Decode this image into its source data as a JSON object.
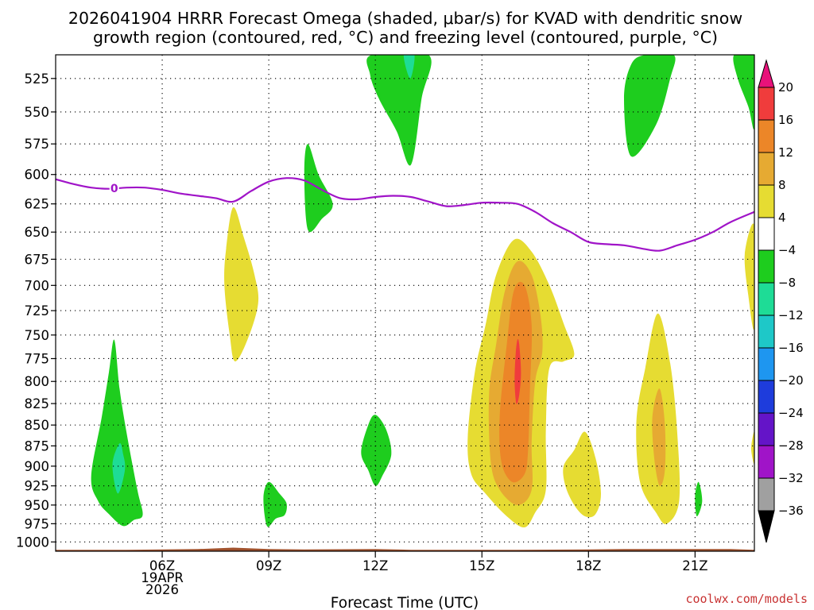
{
  "chart_data": {
    "type": "heatmap",
    "title_lines": [
      "2026041904 HRRR Forecast Omega (shaded, μbar/s) for KVAD with dendritic snow",
      "growth region (contoured, red, °C) and freezing level (contoured, purple, °C)"
    ],
    "xlabel": "Forecast Time (UTC)",
    "credit": "coolwx.com/models",
    "x_range_hours": [
      3.0,
      22.67
    ],
    "y_range_hPa": [
      508,
      1013
    ],
    "x_ticks": [
      {
        "hour": 6,
        "lines": [
          "06Z",
          "19APR",
          "2026"
        ]
      },
      {
        "hour": 9,
        "lines": [
          "09Z"
        ]
      },
      {
        "hour": 12,
        "lines": [
          "12Z"
        ]
      },
      {
        "hour": 15,
        "lines": [
          "15Z"
        ]
      },
      {
        "hour": 18,
        "lines": [
          "18Z"
        ]
      },
      {
        "hour": 21,
        "lines": [
          "21Z"
        ]
      }
    ],
    "y_ticks": [
      525,
      550,
      575,
      600,
      625,
      650,
      675,
      700,
      725,
      750,
      775,
      800,
      825,
      850,
      875,
      900,
      925,
      950,
      975,
      1000
    ],
    "grid": true,
    "colorbar": {
      "labels": [
        "20",
        "16",
        "12",
        "8",
        "4",
        "−4",
        "−8",
        "−12",
        "−16",
        "−20",
        "−24",
        "−28",
        "−32",
        "−36"
      ],
      "bins": [
        {
          "range": [
            20,
            24
          ],
          "color": "#e8127a"
        },
        {
          "range": [
            16,
            20
          ],
          "color": "#f03c3c"
        },
        {
          "range": [
            12,
            16
          ],
          "color": "#ec8628"
        },
        {
          "range": [
            8,
            12
          ],
          "color": "#e6aa32"
        },
        {
          "range": [
            4,
            8
          ],
          "color": "#e6dc32"
        },
        {
          "range": [
            -4,
            4
          ],
          "color": "#ffffff"
        },
        {
          "range": [
            -8,
            -4
          ],
          "color": "#1ecd1e"
        },
        {
          "range": [
            -12,
            -8
          ],
          "color": "#1edc96"
        },
        {
          "range": [
            -16,
            -12
          ],
          "color": "#1ec8c8"
        },
        {
          "range": [
            -20,
            -16
          ],
          "color": "#1e96f0"
        },
        {
          "range": [
            -24,
            -20
          ],
          "color": "#1e3cdc"
        },
        {
          "range": [
            -28,
            -24
          ],
          "color": "#6414c8"
        },
        {
          "range": [
            -32,
            -28
          ],
          "color": "#a014c8"
        },
        {
          "range": [
            -36,
            -32
          ],
          "color": "#a0a0a0"
        },
        {
          "range": [
            -40,
            -36
          ],
          "color": "#000000"
        }
      ]
    },
    "freezing_level": {
      "label": "0",
      "color": "#a014c8",
      "points": [
        [
          3.0,
          604
        ],
        [
          3.5,
          608
        ],
        [
          4.0,
          611
        ],
        [
          4.5,
          612
        ],
        [
          5.0,
          611
        ],
        [
          5.5,
          611
        ],
        [
          6.0,
          613
        ],
        [
          6.5,
          616
        ],
        [
          7.0,
          618
        ],
        [
          7.5,
          620
        ],
        [
          8.0,
          623
        ],
        [
          8.5,
          614
        ],
        [
          9.0,
          606
        ],
        [
          9.5,
          603
        ],
        [
          10.0,
          605
        ],
        [
          10.5,
          613
        ],
        [
          11.0,
          620
        ],
        [
          11.5,
          621
        ],
        [
          12.0,
          619
        ],
        [
          12.5,
          618
        ],
        [
          13.0,
          619
        ],
        [
          13.5,
          623
        ],
        [
          14.0,
          627
        ],
        [
          14.5,
          626
        ],
        [
          15.0,
          624
        ],
        [
          15.5,
          624
        ],
        [
          16.0,
          625
        ],
        [
          16.5,
          632
        ],
        [
          17.0,
          642
        ],
        [
          17.5,
          650
        ],
        [
          18.0,
          659
        ],
        [
          18.5,
          661
        ],
        [
          19.0,
          662
        ],
        [
          19.5,
          665
        ],
        [
          20.0,
          667
        ],
        [
          20.5,
          662
        ],
        [
          21.0,
          657
        ],
        [
          21.5,
          650
        ],
        [
          22.0,
          641
        ],
        [
          22.67,
          632
        ]
      ]
    },
    "terrain": {
      "color": "#a0522d",
      "points": [
        [
          3.0,
          1011
        ],
        [
          5.0,
          1011
        ],
        [
          7.0,
          1010
        ],
        [
          8.0,
          1008
        ],
        [
          9.0,
          1010
        ],
        [
          10.0,
          1010.5
        ],
        [
          12.0,
          1010
        ],
        [
          13.0,
          1011
        ],
        [
          16.0,
          1011
        ],
        [
          18.0,
          1010.5
        ],
        [
          19.0,
          1010
        ],
        [
          20.0,
          1010
        ],
        [
          22.0,
          1010
        ],
        [
          22.67,
          1011
        ]
      ]
    },
    "omega_regions": [
      {
        "level": "-4",
        "color": "#1ecd1e",
        "points": [
          [
            4.0,
            913
          ],
          [
            4.3,
            840
          ],
          [
            4.5,
            790
          ],
          [
            4.65,
            755
          ],
          [
            4.8,
            808
          ],
          [
            5.0,
            860
          ],
          [
            5.3,
            930
          ],
          [
            5.45,
            963
          ],
          [
            5.2,
            970
          ],
          [
            4.9,
            978
          ],
          [
            4.5,
            962
          ],
          [
            4.2,
            945
          ]
        ]
      },
      {
        "level": "-8",
        "color": "#1edc96",
        "points": [
          [
            4.8,
            872
          ],
          [
            4.6,
            898
          ],
          [
            4.75,
            935
          ],
          [
            4.95,
            905
          ],
          [
            4.9,
            885
          ]
        ]
      },
      {
        "level": "-4",
        "color": "#1ecd1e",
        "points": [
          [
            8.85,
            940
          ],
          [
            9.0,
            920
          ],
          [
            9.3,
            935
          ],
          [
            9.5,
            948
          ],
          [
            9.45,
            963
          ],
          [
            9.2,
            968
          ],
          [
            8.95,
            978
          ]
        ]
      },
      {
        "level": "-4",
        "color": "#1ecd1e",
        "points": [
          [
            10.0,
            598
          ],
          [
            10.1,
            575
          ],
          [
            10.4,
            600
          ],
          [
            10.8,
            625
          ],
          [
            10.5,
            638
          ],
          [
            10.1,
            648
          ]
        ]
      },
      {
        "level": "-4",
        "color": "#1ecd1e",
        "points": [
          [
            11.6,
            883
          ],
          [
            11.8,
            850
          ],
          [
            12.0,
            838
          ],
          [
            12.3,
            855
          ],
          [
            12.45,
            885
          ],
          [
            12.2,
            912
          ],
          [
            12.0,
            925
          ],
          [
            11.8,
            905
          ]
        ]
      },
      {
        "level": "-4",
        "color": "#1ecd1e",
        "points": [
          [
            11.9,
            508
          ],
          [
            13.5,
            508
          ],
          [
            13.3,
            540
          ],
          [
            13.0,
            592
          ],
          [
            12.6,
            565
          ],
          [
            12.1,
            540
          ],
          [
            11.85,
            522
          ]
        ]
      },
      {
        "level": "-8",
        "color": "#1edc96",
        "points": [
          [
            12.8,
            508
          ],
          [
            13.1,
            508
          ],
          [
            12.98,
            525
          ]
        ]
      },
      {
        "level": "-4",
        "color": "#1ecd1e",
        "points": [
          [
            19.6,
            508
          ],
          [
            20.4,
            508
          ],
          [
            20.3,
            525
          ],
          [
            19.9,
            560
          ],
          [
            19.2,
            585
          ],
          [
            19.0,
            540
          ],
          [
            19.2,
            515
          ]
        ]
      },
      {
        "level": "-4",
        "color": "#1ecd1e",
        "points": [
          [
            22.1,
            508
          ],
          [
            22.67,
            508
          ],
          [
            22.67,
            562
          ],
          [
            22.5,
            546
          ],
          [
            22.2,
            525
          ]
        ]
      },
      {
        "level": "-4",
        "color": "#1ecd1e",
        "points": [
          [
            21.0,
            938
          ],
          [
            21.1,
            920
          ],
          [
            21.2,
            945
          ],
          [
            21.05,
            965
          ]
        ]
      },
      {
        "level": "4",
        "color": "#e6dc32",
        "points": [
          [
            7.8,
            665
          ],
          [
            8.0,
            628
          ],
          [
            8.3,
            655
          ],
          [
            8.6,
            690
          ],
          [
            8.7,
            718
          ],
          [
            8.4,
            755
          ],
          [
            8.05,
            778
          ],
          [
            7.9,
            750
          ],
          [
            7.75,
            700
          ]
        ]
      },
      {
        "level": "4",
        "color": "#e6dc32",
        "points": [
          [
            14.6,
            865
          ],
          [
            14.8,
            790
          ],
          [
            15.1,
            740
          ],
          [
            15.4,
            690
          ],
          [
            15.9,
            657
          ],
          [
            16.4,
            668
          ],
          [
            16.9,
            700
          ],
          [
            17.3,
            738
          ],
          [
            17.6,
            770
          ],
          [
            17.3,
            778
          ],
          [
            16.9,
            785
          ],
          [
            16.8,
            855
          ],
          [
            16.8,
            930
          ],
          [
            16.5,
            960
          ],
          [
            16.2,
            980
          ],
          [
            15.7,
            965
          ],
          [
            15.1,
            935
          ],
          [
            14.7,
            910
          ]
        ]
      },
      {
        "level": "8",
        "color": "#e6aa32",
        "points": [
          [
            15.2,
            815
          ],
          [
            15.4,
            760
          ],
          [
            15.65,
            705
          ],
          [
            16.0,
            677
          ],
          [
            16.4,
            690
          ],
          [
            16.65,
            730
          ],
          [
            16.7,
            768
          ],
          [
            16.5,
            800
          ],
          [
            16.4,
            870
          ],
          [
            16.4,
            930
          ],
          [
            16.0,
            950
          ],
          [
            15.5,
            930
          ],
          [
            15.25,
            895
          ]
        ]
      },
      {
        "level": "12",
        "color": "#ec8628",
        "points": [
          [
            15.5,
            840
          ],
          [
            15.7,
            760
          ],
          [
            15.9,
            705
          ],
          [
            16.2,
            700
          ],
          [
            16.4,
            740
          ],
          [
            16.35,
            810
          ],
          [
            16.3,
            880
          ],
          [
            16.2,
            910
          ],
          [
            15.85,
            920
          ],
          [
            15.55,
            895
          ]
        ]
      },
      {
        "level": "16",
        "color": "#f03c3c",
        "points": [
          [
            15.95,
            770
          ],
          [
            16.0,
            755
          ],
          [
            16.05,
            760
          ],
          [
            16.1,
            790
          ],
          [
            16.05,
            815
          ],
          [
            15.97,
            825
          ],
          [
            15.92,
            800
          ]
        ]
      },
      {
        "level": "4",
        "color": "#e6dc32",
        "points": [
          [
            17.3,
            900
          ],
          [
            17.6,
            880
          ],
          [
            17.9,
            858
          ],
          [
            18.2,
            890
          ],
          [
            18.35,
            935
          ],
          [
            18.2,
            962
          ],
          [
            17.9,
            965
          ],
          [
            17.6,
            950
          ],
          [
            17.35,
            925
          ]
        ]
      },
      {
        "level": "4",
        "color": "#e6dc32",
        "points": [
          [
            19.35,
            845
          ],
          [
            19.6,
            785
          ],
          [
            19.95,
            728
          ],
          [
            20.3,
            780
          ],
          [
            20.5,
            860
          ],
          [
            20.55,
            945
          ],
          [
            20.2,
            975
          ],
          [
            19.9,
            960
          ],
          [
            19.45,
            920
          ]
        ]
      },
      {
        "level": "8",
        "color": "#e6aa32",
        "points": [
          [
            19.8,
            840
          ],
          [
            20.0,
            808
          ],
          [
            20.15,
            850
          ],
          [
            20.15,
            905
          ],
          [
            20.0,
            925
          ],
          [
            19.85,
            890
          ]
        ]
      },
      {
        "level": "4",
        "color": "#e6dc32",
        "points": [
          [
            22.4,
            670
          ],
          [
            22.67,
            645
          ],
          [
            22.67,
            742
          ],
          [
            22.5,
            710
          ]
        ]
      },
      {
        "level": "4",
        "color": "#e6dc32",
        "points": [
          [
            22.67,
            858
          ],
          [
            22.67,
            897
          ],
          [
            22.58,
            878
          ]
        ]
      }
    ]
  }
}
